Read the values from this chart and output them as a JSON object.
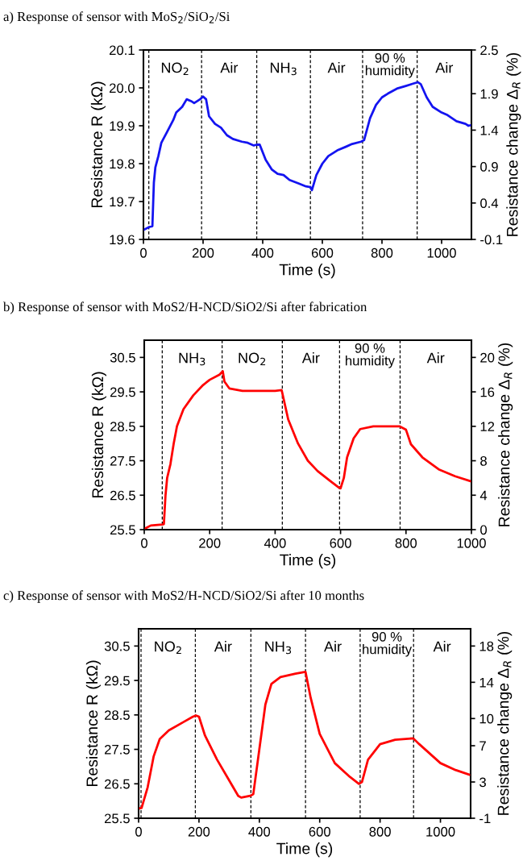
{
  "chart_data": [
    {
      "type": "line",
      "title": "a) Response of sensor with MoS$_{2}$/SiO$_{2}$/Si",
      "xlabel": "Time (s)",
      "ylabel": "Resistance R (kΩ)",
      "y2label": "Resistance change Δ$_{R}$ (%)",
      "xlim": [
        0,
        1100
      ],
      "xticks": [
        0,
        200,
        400,
        600,
        800,
        1000
      ],
      "ylim": [
        19.6,
        20.1
      ],
      "yticks": [
        19.6,
        19.7,
        19.8,
        19.9,
        {
          "value": 20,
          "label": "20.0"
        },
        20.1
      ],
      "y2lim": [
        -0.1,
        2.5
      ],
      "y2ticks": [
        -0.1,
        0.4,
        0.9,
        1.4,
        1.9,
        2.5
      ],
      "grid": false,
      "legend": false,
      "series": [
        {
          "color": "#1414f0",
          "x": [
            0,
            20,
            30,
            35,
            40,
            50,
            60,
            80,
            100,
            110,
            130,
            145,
            160,
            170,
            190,
            200,
            210,
            220,
            240,
            260,
            280,
            300,
            330,
            350,
            370,
            380,
            390,
            410,
            430,
            450,
            470,
            490,
            520,
            545,
            560,
            565,
            580,
            600,
            620,
            650,
            680,
            700,
            730,
            740,
            760,
            780,
            800,
            820,
            850,
            880,
            900,
            920,
            930,
            950,
            970,
            1000,
            1020,
            1050,
            1080,
            1090,
            1100
          ],
          "values": [
            19.625,
            19.633,
            19.635,
            19.75,
            19.79,
            19.82,
            19.855,
            19.885,
            19.915,
            19.935,
            19.95,
            19.97,
            19.965,
            19.96,
            19.97,
            19.977,
            19.97,
            19.925,
            19.905,
            19.895,
            19.875,
            19.865,
            19.858,
            19.855,
            19.848,
            19.85,
            19.85,
            19.81,
            19.785,
            19.773,
            19.77,
            19.757,
            19.748,
            19.74,
            19.738,
            19.73,
            19.77,
            19.8,
            19.82,
            19.835,
            19.845,
            19.852,
            19.858,
            19.862,
            19.92,
            19.955,
            19.975,
            19.985,
            19.998,
            20.005,
            20.01,
            20.015,
            20.01,
            19.975,
            19.95,
            19.935,
            19.928,
            19.912,
            19.905,
            19.9,
            19.902
          ]
        }
      ],
      "ref_lines": [
        {
          "axis": "x",
          "value": 18,
          "color": "#000000",
          "line_style": "dashed"
        },
        {
          "axis": "x",
          "value": 195,
          "color": "#000000",
          "line_style": "dashed"
        },
        {
          "axis": "x",
          "value": 380,
          "color": "#000000",
          "line_style": "dashed"
        },
        {
          "axis": "x",
          "value": 560,
          "color": "#000000",
          "line_style": "dashed"
        },
        {
          "axis": "x",
          "value": 735,
          "color": "#000000",
          "line_style": "dashed"
        },
        {
          "axis": "x",
          "value": 918,
          "color": "#000000",
          "line_style": "dashed"
        }
      ],
      "annotations": [
        "NO$_{2}$",
        "Air",
        "NH$_{3}$",
        "Air",
        "90 %\nhumidity",
        "Air"
      ]
    },
    {
      "type": "line",
      "title": "b) Response of sensor with MoS2/H-NCD/SiO2/Si after fabrication",
      "xlabel": "Time (s)",
      "ylabel": "Resistance R (kΩ)",
      "y2label": "Resistance change Δ$_{R}$ (%)",
      "xlim": [
        0,
        1000
      ],
      "xticks": [
        0,
        200,
        400,
        600,
        800,
        1000
      ],
      "ylim": [
        25.5,
        31.0
      ],
      "yticks": [
        25.5,
        26.5,
        27.5,
        28.5,
        29.5,
        30.5
      ],
      "y2lim": [
        0,
        22
      ],
      "y2ticks": [
        0,
        4,
        8,
        12,
        16,
        20
      ],
      "grid": false,
      "legend": false,
      "series": [
        {
          "color": "#ff0000",
          "x": [
            0,
            20,
            55,
            60,
            65,
            70,
            80,
            90,
            100,
            120,
            150,
            180,
            200,
            230,
            240,
            245,
            260,
            300,
            400,
            420,
            440,
            470,
            500,
            530,
            570,
            595,
            600,
            610,
            620,
            640,
            660,
            700,
            780,
            800,
            815,
            850,
            900,
            950,
            1000
          ],
          "values": [
            25.52,
            25.62,
            25.65,
            25.66,
            26.5,
            27.0,
            27.4,
            28.0,
            28.5,
            29.0,
            29.4,
            29.7,
            29.85,
            30.0,
            30.1,
            29.8,
            29.6,
            29.53,
            29.53,
            29.55,
            28.7,
            28.0,
            27.5,
            27.2,
            26.9,
            26.72,
            26.7,
            27.0,
            27.6,
            28.15,
            28.42,
            28.5,
            28.5,
            28.4,
            27.98,
            27.6,
            27.25,
            27.05,
            26.9
          ]
        }
      ],
      "ref_lines": [
        {
          "axis": "x",
          "value": 55,
          "color": "#000000",
          "line_style": "dashed"
        },
        {
          "axis": "x",
          "value": 238,
          "color": "#000000",
          "line_style": "dashed"
        },
        {
          "axis": "x",
          "value": 422,
          "color": "#000000",
          "line_style": "dashed"
        },
        {
          "axis": "x",
          "value": 597,
          "color": "#000000",
          "line_style": "dashed"
        },
        {
          "axis": "x",
          "value": 782,
          "color": "#000000",
          "line_style": "dashed"
        }
      ],
      "annotations": [
        "NH$_{3}$",
        "NO$_{2}$",
        "Air",
        "90 %\nhumidity",
        "Air"
      ]
    },
    {
      "type": "line",
      "title": "c) Response of sensor with MoS2/H-NCD/SiO2/Si after 10 months",
      "xlabel": "Time (s)",
      "ylabel": "Resistance R (kΩ)",
      "y2label": "Resistance change Δ$_{R}$ (%)",
      "xlim": [
        0,
        1100
      ],
      "xticks": [
        0,
        200,
        400,
        600,
        800,
        1000
      ],
      "ylim": [
        25.5,
        31.0
      ],
      "yticks": [
        25.5,
        26.5,
        27.5,
        28.5,
        29.5,
        30.5
      ],
      "y2lim": [
        -1,
        19.9
      ],
      "y2ticks": [
        -1,
        3,
        7,
        10,
        14,
        18
      ],
      "grid": false,
      "legend": false,
      "series": [
        {
          "color": "#ff0000",
          "x": [
            0,
            10,
            30,
            50,
            70,
            100,
            150,
            180,
            190,
            200,
            220,
            260,
            300,
            330,
            340,
            370,
            380,
            400,
            420,
            440,
            470,
            520,
            553,
            570,
            600,
            650,
            700,
            730,
            740,
            760,
            800,
            850,
            910,
            930,
            1000,
            1050,
            1100
          ],
          "values": [
            25.78,
            25.8,
            26.4,
            27.3,
            27.8,
            28.05,
            28.3,
            28.45,
            28.48,
            28.45,
            27.9,
            27.2,
            26.6,
            26.15,
            26.1,
            26.15,
            26.2,
            27.5,
            28.8,
            29.4,
            29.6,
            29.7,
            29.75,
            29.0,
            27.95,
            27.1,
            26.7,
            26.5,
            26.55,
            27.2,
            27.65,
            27.78,
            27.82,
            27.65,
            27.1,
            26.9,
            26.75
          ]
        }
      ],
      "ref_lines": [
        {
          "axis": "x",
          "value": 8,
          "color": "#000000",
          "line_style": "dashed"
        },
        {
          "axis": "x",
          "value": 188,
          "color": "#000000",
          "line_style": "dashed"
        },
        {
          "axis": "x",
          "value": 372,
          "color": "#000000",
          "line_style": "dashed"
        },
        {
          "axis": "x",
          "value": 553,
          "color": "#000000",
          "line_style": "dashed"
        },
        {
          "axis": "x",
          "value": 734,
          "color": "#000000",
          "line_style": "dashed"
        },
        {
          "axis": "x",
          "value": 911,
          "color": "#000000",
          "line_style": "dashed"
        }
      ],
      "annotations": [
        "NO$_{2}$",
        "Air",
        "NH$_{3}$",
        "Air",
        "90 %\nhumidity",
        "Air"
      ]
    }
  ]
}
